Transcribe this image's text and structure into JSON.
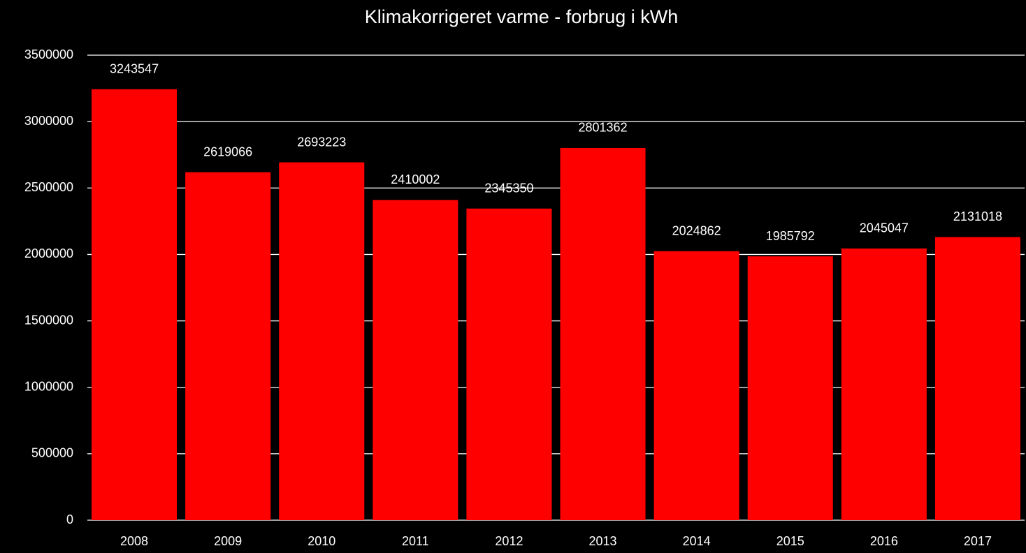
{
  "chart_data": {
    "type": "bar",
    "title": "Klimakorrigeret varme - forbrug i kWh",
    "categories": [
      "2008",
      "2009",
      "2010",
      "2011",
      "2012",
      "2013",
      "2014",
      "2015",
      "2016",
      "2017"
    ],
    "values": [
      3243547,
      2619066,
      2693223,
      2410002,
      2345350,
      2801362,
      2024862,
      1985792,
      2045047,
      2131018
    ],
    "color": "#ff0000",
    "ylim": [
      0,
      3500000
    ],
    "yticks": [
      0,
      500000,
      1000000,
      1500000,
      2000000,
      2500000,
      3000000,
      3500000
    ],
    "grid": true
  }
}
